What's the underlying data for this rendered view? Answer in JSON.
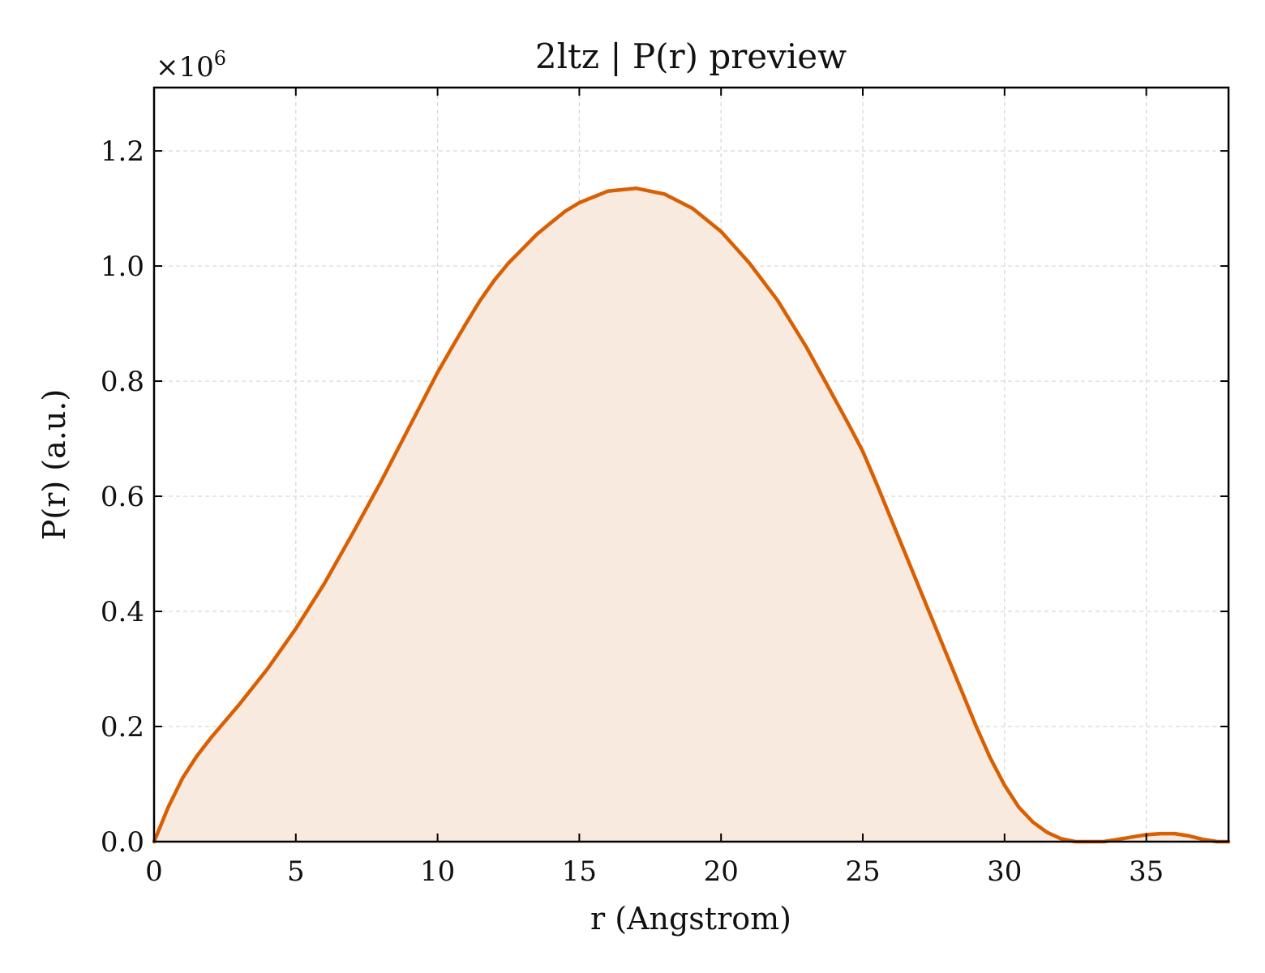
{
  "chart_data": {
    "type": "area",
    "title": "2ltz | P(r) preview",
    "xlabel": "r (Angstrom)",
    "ylabel": "P(r) (a.u.)",
    "y_offset_label": "×10",
    "y_offset_exponent": "6",
    "xlim": [
      0,
      37.9
    ],
    "ylim": [
      0,
      1.31
    ],
    "y_scale_factor": 1000000,
    "grid": true,
    "x_ticks": [
      0,
      5,
      10,
      15,
      20,
      25,
      30,
      35
    ],
    "x_tick_labels": [
      "0",
      "5",
      "10",
      "15",
      "20",
      "25",
      "30",
      "35"
    ],
    "y_ticks": [
      0,
      0.2,
      0.4,
      0.6,
      0.8,
      1.0,
      1.2
    ],
    "y_tick_labels": [
      "0.0",
      "0.2",
      "0.4",
      "0.6",
      "0.8",
      "1.0",
      "1.2"
    ],
    "colors": {
      "line": "#d95f02",
      "fill": "#f9eadf"
    },
    "series": [
      {
        "x": [
          0,
          0.5,
          1,
          1.5,
          2,
          3,
          4,
          5,
          6,
          7,
          8,
          9,
          10,
          10.5,
          11,
          11.5,
          12,
          12.5,
          13,
          13.5,
          14,
          14.5,
          15,
          16,
          17,
          18,
          19,
          20,
          21,
          22,
          23,
          24,
          24.5,
          25,
          25.5,
          26,
          26.5,
          27,
          27.5,
          28,
          28.5,
          29,
          29.5,
          30,
          30.5,
          31,
          31.5,
          32,
          32.5,
          33,
          33.5,
          34,
          34.5,
          35,
          35.5,
          36,
          36.5,
          37,
          37.5,
          37.9
        ],
        "y": [
          0.0,
          0.06,
          0.11,
          0.148,
          0.18,
          0.238,
          0.3,
          0.37,
          0.448,
          0.535,
          0.625,
          0.72,
          0.815,
          0.858,
          0.9,
          0.94,
          0.975,
          1.005,
          1.03,
          1.055,
          1.075,
          1.095,
          1.11,
          1.13,
          1.135,
          1.125,
          1.1,
          1.06,
          1.005,
          0.94,
          0.86,
          0.77,
          0.725,
          0.678,
          0.62,
          0.56,
          0.5,
          0.44,
          0.38,
          0.32,
          0.26,
          0.2,
          0.145,
          0.098,
          0.06,
          0.034,
          0.016,
          0.005,
          0.0,
          -0.002,
          0.0,
          0.004,
          0.008,
          0.012,
          0.014,
          0.014,
          0.01,
          0.004,
          0.0,
          0.0
        ]
      }
    ]
  }
}
